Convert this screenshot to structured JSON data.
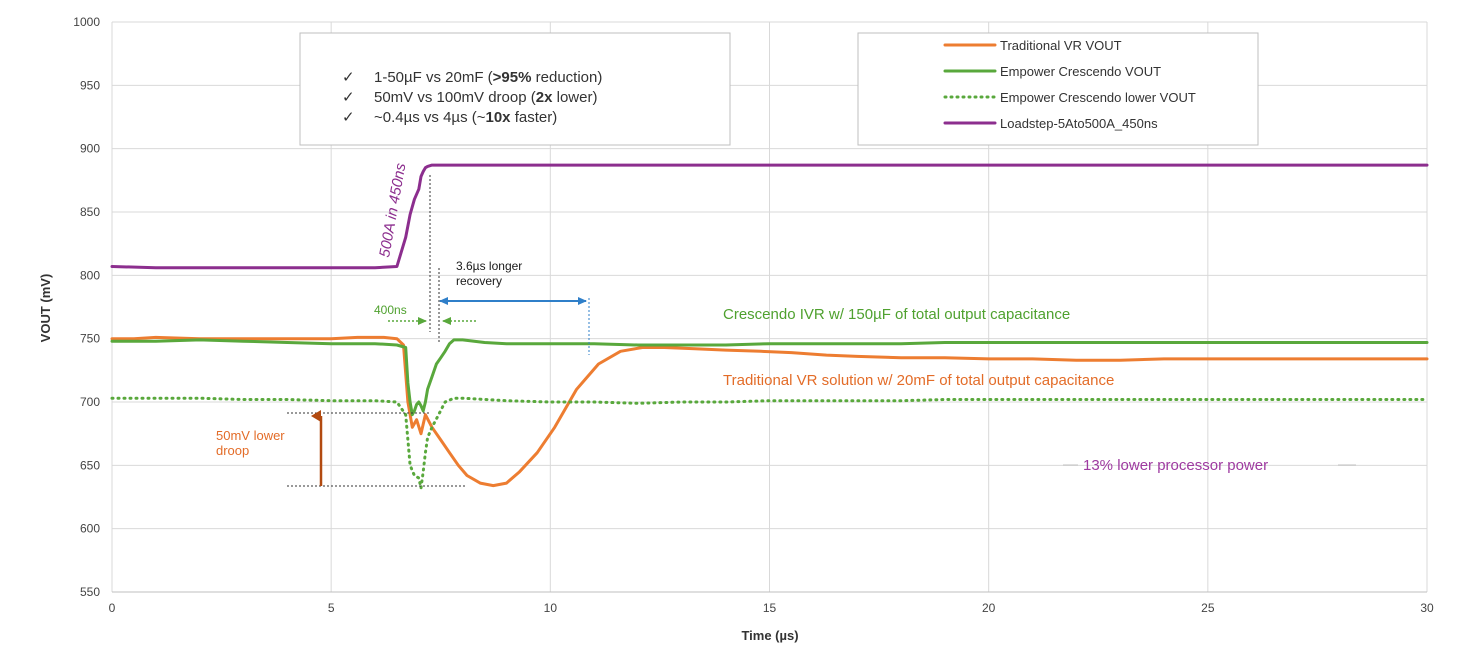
{
  "chart_data": {
    "type": "line",
    "xlabel": "Time (µs)",
    "ylabel": "VOUT (mV)",
    "xlim": [
      0,
      30
    ],
    "ylim": [
      550,
      1000
    ],
    "xticks": [
      0,
      5,
      10,
      15,
      20,
      25,
      30
    ],
    "yticks": [
      550,
      600,
      650,
      700,
      750,
      800,
      850,
      900,
      950,
      1000
    ],
    "grid": true,
    "legend_position": "top-right",
    "series": [
      {
        "name": "Traditional VR VOUT",
        "color": "#ED7D31",
        "style": "solid",
        "x": [
          0,
          0.5,
          1.0,
          2.0,
          3.0,
          4.0,
          5.0,
          5.6,
          6.2,
          6.5,
          6.65,
          6.75,
          6.85,
          6.95,
          7.05,
          7.15,
          7.3,
          7.5,
          7.7,
          7.9,
          8.1,
          8.4,
          8.7,
          9.0,
          9.3,
          9.7,
          10.1,
          10.6,
          11.1,
          11.6,
          12.1,
          12.6,
          13.3,
          14.0,
          14.8,
          15.5,
          16.3,
          17.0,
          18.0,
          19.0,
          20.0,
          21.0,
          22.0,
          23.0,
          24.0,
          25.0,
          26.0,
          27.0,
          28.0,
          29.0,
          30.0
        ],
        "y": [
          750,
          750,
          751,
          750,
          750,
          750,
          750,
          751,
          751,
          750,
          745,
          700,
          680,
          686,
          675,
          690,
          680,
          670,
          660,
          650,
          642,
          636,
          634,
          636,
          645,
          660,
          680,
          710,
          730,
          740,
          743,
          743,
          742,
          741,
          740,
          739,
          737,
          736,
          735,
          735,
          734,
          734,
          733,
          733,
          734,
          734,
          734,
          734,
          734,
          734,
          734
        ]
      },
      {
        "name": "Empower Crescendo VOUT",
        "color": "#59A83C",
        "style": "solid",
        "x": [
          0,
          1.0,
          2.0,
          3.0,
          4.0,
          5.0,
          5.5,
          6.0,
          6.5,
          6.7,
          6.75,
          6.8,
          6.85,
          6.9,
          6.95,
          7.0,
          7.05,
          7.1,
          7.15,
          7.2,
          7.3,
          7.4,
          7.5,
          7.6,
          7.7,
          7.8,
          8.0,
          8.5,
          9.0,
          10.0,
          11.0,
          12.0,
          13.0,
          14.0,
          15.0,
          16.0,
          17.0,
          18.0,
          19.0,
          20.0,
          21.0,
          22.0,
          23.0,
          24.0,
          25.0,
          26.0,
          27.0,
          28.0,
          29.0,
          30.0
        ],
        "y": [
          748,
          748,
          749,
          748,
          747,
          746,
          746,
          746,
          745,
          743,
          715,
          700,
          690,
          693,
          698,
          700,
          697,
          693,
          700,
          710,
          720,
          730,
          735,
          740,
          746,
          749,
          749,
          747,
          746,
          746,
          746,
          745,
          745,
          745,
          746,
          746,
          746,
          746,
          747,
          747,
          747,
          747,
          747,
          747,
          747,
          747,
          747,
          747,
          747,
          747
        ]
      },
      {
        "name": "Empower Crescendo lower VOUT",
        "color": "#59A83C",
        "style": "dotted",
        "x": [
          0,
          1.0,
          2.0,
          3.0,
          4.0,
          5.0,
          5.5,
          6.0,
          6.5,
          6.7,
          6.8,
          6.9,
          7.0,
          7.05,
          7.1,
          7.15,
          7.2,
          7.3,
          7.45,
          7.6,
          7.8,
          8.0,
          9.0,
          10.0,
          11.0,
          12.0,
          13.0,
          14.0,
          15.0,
          16.0,
          17.0,
          18.0,
          19.0,
          20.0,
          21.0,
          22.0,
          23.0,
          24.0,
          25.0,
          26.0,
          27.0,
          28.0,
          29.0,
          30.0
        ],
        "y": [
          703,
          703,
          703,
          702,
          702,
          701,
          701,
          701,
          700,
          690,
          650,
          642,
          640,
          632,
          645,
          660,
          672,
          680,
          690,
          700,
          703,
          703,
          701,
          700,
          700,
          699,
          700,
          700,
          701,
          701,
          701,
          701,
          702,
          702,
          702,
          702,
          702,
          702,
          702,
          702,
          702,
          702,
          702,
          702
        ]
      },
      {
        "name": "Loadstep-5Ato500A_450ns",
        "color": "#8C2E8E",
        "style": "solid",
        "x": [
          0,
          1,
          2,
          3,
          4,
          5,
          6,
          6.5,
          6.7,
          6.8,
          6.9,
          7.0,
          7.05,
          7.1,
          7.15,
          7.2,
          7.3,
          7.5,
          8,
          9,
          10,
          11,
          12,
          13,
          14,
          15,
          16,
          17,
          18,
          19,
          20,
          21,
          22,
          23,
          24,
          25,
          26,
          27,
          28,
          29,
          30
        ],
        "y": [
          807,
          806,
          806,
          806,
          806,
          806,
          806,
          807,
          830,
          848,
          860,
          868,
          878,
          882,
          885,
          886,
          887,
          887,
          887,
          887,
          887,
          887,
          887,
          887,
          887,
          887,
          887,
          887,
          887,
          887,
          887,
          887,
          887,
          887,
          887,
          887,
          887,
          887,
          887,
          887,
          887
        ]
      }
    ],
    "bullet_box": {
      "items": [
        {
          "prefix": "1-50µF vs 20mF (",
          "bold": ">95%",
          "suffix": " reduction)"
        },
        {
          "prefix": "50mV vs 100mV droop (",
          "bold": "2x",
          "suffix": " lower)"
        },
        {
          "prefix": "~0.4µs vs 4µs (~",
          "bold": "10x",
          "suffix": " faster)"
        }
      ]
    },
    "annotations": {
      "loadstep_label": "500A in 450ns",
      "recovery_400ns": "400ns",
      "recovery_longer": [
        "3.6µs longer",
        "recovery"
      ],
      "crescendo_ivr": "Crescendo IVR w/ 150µF of total output capacitance",
      "traditional_vr": "Traditional VR solution w/ 20mF of total output capacitance",
      "lower_droop": [
        "50mV lower",
        "droop"
      ],
      "lower_power": "13% lower processor power"
    },
    "colors": {
      "orange_text": "#E36C28",
      "droop_arrow": "#B24A10",
      "blue_arrow": "#2F7FC9",
      "green_text": "#4FA12F",
      "purple_text": "#9E3AA0"
    }
  }
}
